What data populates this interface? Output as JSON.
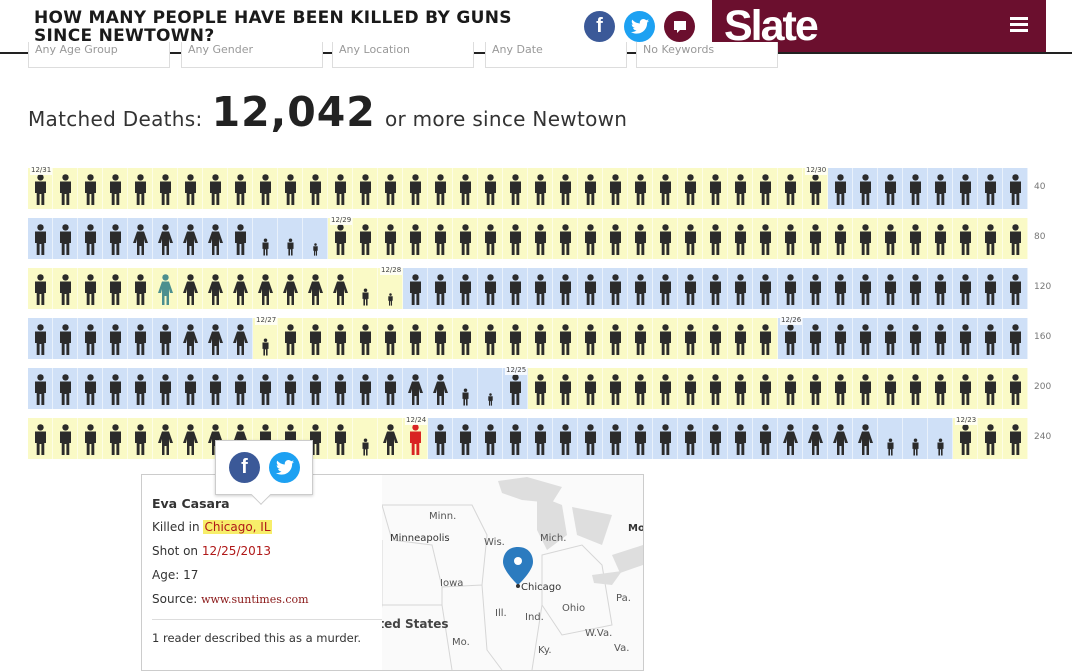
{
  "header": {
    "title": "HOW MANY PEOPLE HAVE BEEN KILLED BY GUNS SINCE NEWTOWN?",
    "share_facebook": "f",
    "share_twitter": "twitter-bird-icon",
    "share_comments": "speech-bubble-icon",
    "brand": "Slate",
    "menu_icon": "hamburger-icon",
    "brand_color": "#6b0f2e"
  },
  "filters": [
    {
      "value": "Any Age Group"
    },
    {
      "value": "Any Gender"
    },
    {
      "value": "Any Location"
    },
    {
      "value": "Any Date"
    },
    {
      "value": "No Keywords"
    }
  ],
  "summary": {
    "label": "Matched Deaths:",
    "count": "12,042",
    "suffix": "or more since Newtown"
  },
  "grid_rows": [
    {
      "count": "40",
      "colors": "yyyyyyyyyyyyyyyyyyyyyyyyyyyyyyyybbbbbbbb",
      "figures": "AAAAAAAAAAAAAAAAAAAAAAAAAAAAAAAbbbbbbbbbb",
      "tags": [
        {
          "at": 0,
          "label": "12/31"
        },
        {
          "at": 31,
          "label": "12/30"
        }
      ]
    },
    {
      "count": "80",
      "colors": "bbbbbbbbbbbbyyyyyyyyyyyyyyyyyyyyyyyyyyyy",
      "figures": "AAAAFFFFAccCAAAAAAAAAAAAAAAAAAAAAAAAAAAA",
      "tags": [
        {
          "at": 12,
          "label": "12/29"
        }
      ]
    },
    {
      "count": "120",
      "colors": "yyyyyyyyyyyyyyybbbbbbbbbbbbbbbbbbbbbbbbb",
      "figures": "AAAAATFFFFFFFcCAAAAAAAAAAAAAAAAAAAAAAAAA",
      "tags": [
        {
          "at": 14,
          "label": "12/28"
        }
      ]
    },
    {
      "count": "160",
      "colors": "bbbbbbbbbyyyyyyyyyyyyyyyyyyyyybbbbbbbbbb",
      "figures": "AAAAAAFFFcAAAAAAAAAAAAAAAAAAAAAAAAAAAAAA",
      "tags": [
        {
          "at": 9,
          "label": "12/27"
        },
        {
          "at": 30,
          "label": "12/26"
        }
      ]
    },
    {
      "count": "200",
      "colors": "bbbbbbbbbbbbbbbbbbbbyyyyyyyyyyyyyyyyyyyy",
      "figures": "AAAAAAAAAAAAAAAFFcCAAAAAAAAAAAAAAAAAAAAA",
      "tags": [
        {
          "at": 19,
          "label": "12/25"
        }
      ]
    },
    {
      "count": "240",
      "colors": "yyyyyyyyyyyyyyyybbbbbbbbbbbbbbbbbbbbbyyy",
      "figures": "AAAAAFFFFAAAAcFRAAAAAAAAAAAAAAFFFFcccAAA",
      "tags": [
        {
          "at": 15,
          "label": "12/24"
        },
        {
          "at": 37,
          "label": "12/23"
        }
      ]
    }
  ],
  "figure_colors": {
    "A": "#2b2b2b",
    "F": "#2b2b2b",
    "c": "#2b2b2b",
    "C": "#2b2b2b",
    "T": "#4c8f8f",
    "R": "#d92323"
  },
  "cell_colors": {
    "y": "#fafac6",
    "b": "#cfe0f7"
  },
  "popup": {
    "share_facebook": "f",
    "share_twitter": "twitter-bird-icon",
    "victim_name": "Eva Casara",
    "killed_label": "Killed in",
    "killed_place": "Chicago, IL",
    "shot_label": "Shot on",
    "shot_date": "12/25/2013",
    "age_label": "Age:",
    "age": "17",
    "source_label": "Source:",
    "source": "www.suntimes.com",
    "reader_note": "1 reader described this as a murder."
  },
  "map": {
    "marker_icon": "map-pin-icon",
    "labels": {
      "minn": "Minn.",
      "minneapolis": "Minneapolis",
      "wis": "Wis.",
      "mich": "Mich.",
      "chicago": "Chicago",
      "iowa": "Iowa",
      "ill": "Ill.",
      "ind": "Ind.",
      "ohio": "Ohio",
      "pa": "Pa.",
      "wva": "W.Va.",
      "va": "Va.",
      "ky": "Ky.",
      "mo": "Mo.",
      "us": "United States",
      "mo_cut": "Mo"
    }
  }
}
